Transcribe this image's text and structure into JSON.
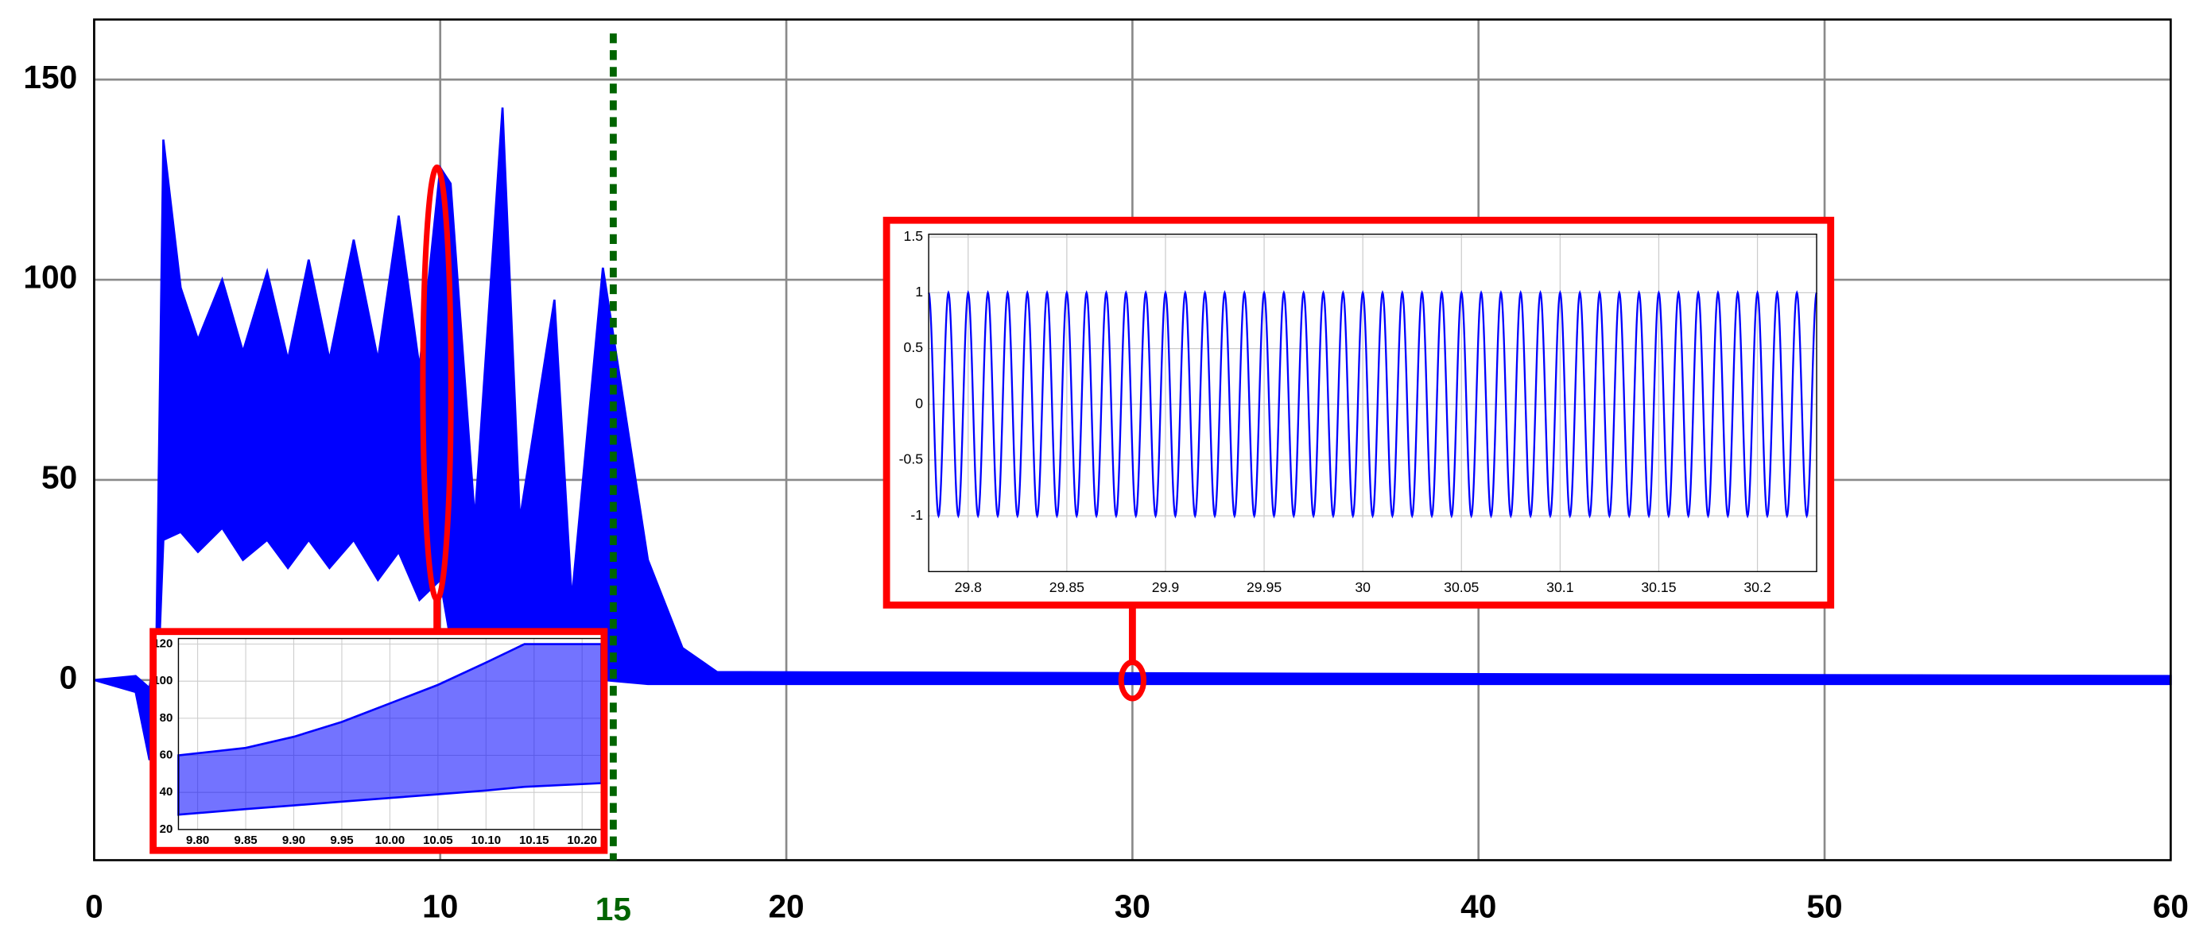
{
  "chart_data": [
    {
      "type": "band",
      "color": "#0000ff",
      "grid": true,
      "x": [
        0,
        1.2,
        1.6,
        1.8,
        2.0,
        2.5,
        3.0,
        3.7,
        4.3,
        5.0,
        5.6,
        6.2,
        6.8,
        7.5,
        8.2,
        8.8,
        9.4,
        10.0,
        10.3,
        11.0,
        11.8,
        12.3,
        13.3,
        13.8,
        14.7,
        16.0,
        17.0,
        18.0,
        60
      ],
      "upper": [
        0,
        1,
        -2,
        10,
        135,
        98,
        85,
        100,
        82,
        102,
        80,
        105,
        80,
        110,
        80,
        116,
        78,
        128,
        124,
        40,
        143,
        40,
        95,
        20,
        103,
        30,
        8,
        2,
        1
      ],
      "lower": [
        0,
        -3,
        -20,
        -10,
        35,
        37,
        32,
        38,
        30,
        35,
        28,
        35,
        28,
        35,
        25,
        32,
        20,
        25,
        10,
        5,
        10,
        5,
        5,
        5,
        0,
        -1,
        -1,
        -1,
        -1
      ],
      "xlim": [
        0,
        60
      ],
      "ylim": [
        -45,
        165
      ],
      "xticks": [
        0,
        10,
        20,
        30,
        40,
        50,
        60
      ],
      "yticks": [
        0,
        50,
        100,
        150
      ],
      "vline": {
        "value": 15,
        "color": "#006400"
      }
    },
    {
      "type": "band",
      "color": "#0000ff",
      "grid": true,
      "x": [
        9.78,
        9.85,
        9.9,
        9.95,
        10.0,
        10.05,
        10.1,
        10.14,
        10.22
      ],
      "upper": [
        60,
        64,
        70,
        78,
        88,
        98,
        110,
        120,
        120
      ],
      "lower": [
        28,
        31,
        33,
        35,
        37,
        39,
        41,
        43,
        45
      ],
      "xlim": [
        9.78,
        10.22
      ],
      "ylim": [
        20,
        123
      ],
      "xticks": [
        {
          "value": 9.8,
          "label": "9.80"
        },
        9.85,
        {
          "value": 9.9,
          "label": "9.90"
        },
        9.95,
        {
          "value": 10,
          "label": "10.00"
        },
        10.05,
        {
          "value": 10.1,
          "label": "10.10"
        },
        10.15,
        {
          "value": 10.2,
          "label": "10.20"
        }
      ],
      "yticks": [
        20,
        40,
        60,
        80,
        100,
        120
      ]
    },
    {
      "type": "sine",
      "color": "#0000ff",
      "grid": true,
      "amplitude": 1,
      "frequency": 100,
      "xlim": [
        29.78,
        30.23
      ],
      "ylim": [
        -1.5,
        1.525
      ],
      "xticks": [
        29.8,
        29.85,
        29.9,
        29.95,
        30,
        30.05,
        30.1,
        30.15,
        30.2
      ],
      "yticks": [
        -1,
        -0.5,
        0,
        0.5,
        1,
        1.5
      ]
    }
  ]
}
